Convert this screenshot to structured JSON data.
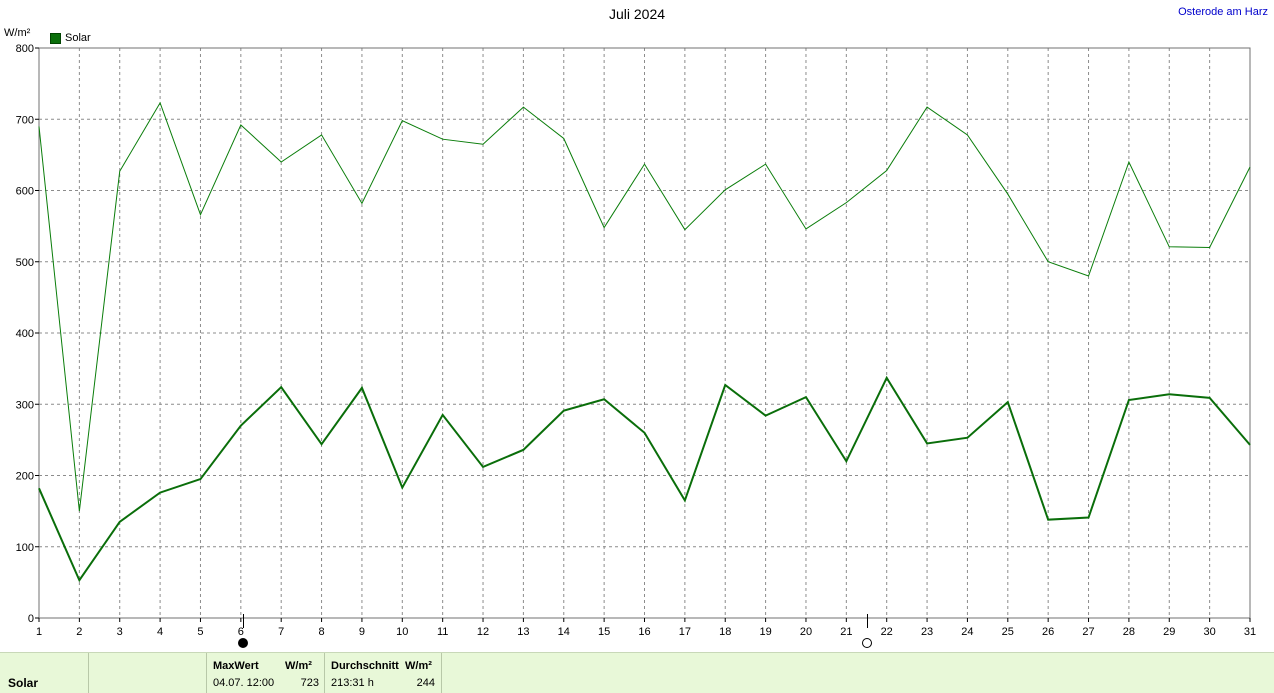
{
  "chart_data": {
    "type": "line",
    "title": "Juli 2024",
    "location": "Osterode am Harz",
    "ylabel": "W/m²",
    "ylim": [
      0,
      800
    ],
    "yticks": [
      0,
      100,
      200,
      300,
      400,
      500,
      600,
      700,
      800
    ],
    "xlim": [
      1,
      31
    ],
    "x": [
      1,
      2,
      3,
      4,
      5,
      6,
      7,
      8,
      9,
      10,
      11,
      12,
      13,
      14,
      15,
      16,
      17,
      18,
      19,
      20,
      21,
      22,
      23,
      24,
      25,
      26,
      27,
      28,
      29,
      30,
      31
    ],
    "grid": true,
    "legend": {
      "position": "top-left",
      "entries": [
        "Solar"
      ]
    },
    "series": [
      {
        "name": "Solar",
        "role": "max",
        "color": "#0a7d0a",
        "values": [
          690,
          150,
          627,
          723,
          566,
          692,
          640,
          678,
          582,
          698,
          672,
          665,
          717,
          673,
          548,
          637,
          545,
          601,
          637,
          546,
          583,
          628,
          717,
          678,
          595,
          500,
          480,
          640,
          521,
          520,
          633
        ]
      },
      {
        "name": "Solar",
        "role": "average",
        "color": "#0a6e0a",
        "values": [
          182,
          53,
          135,
          176,
          195,
          270,
          324,
          244,
          323,
          183,
          285,
          212,
          236,
          291,
          307,
          260,
          165,
          327,
          284,
          310,
          220,
          337,
          245,
          253,
          303,
          138,
          141,
          306,
          314,
          309,
          243
        ]
      }
    ],
    "markers": [
      {
        "x": 6,
        "type": "new-moon"
      },
      {
        "x": 21.5,
        "type": "full-moon"
      }
    ]
  },
  "footer": {
    "series_label": "Solar",
    "max_header": "MaxWert",
    "max_unit": "W/m²",
    "max_time": "04.07.  12:00",
    "max_value": "723",
    "avg_header": "Durchschnitt",
    "avg_unit": "W/m²",
    "avg_duration": "213:31 h",
    "avg_value": "244"
  }
}
